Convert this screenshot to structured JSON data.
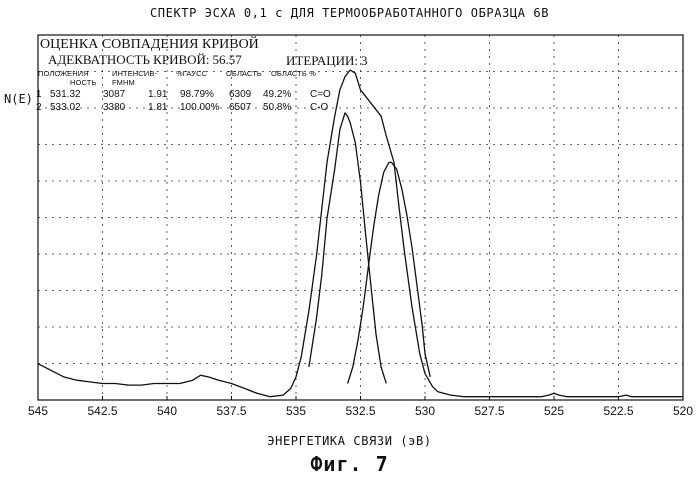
{
  "figure": {
    "title": "СПЕКТР ЭСХА 0,1 с ДЛЯ ТЕРМООБРАБОТАННОГО ОБРАЗЦА 6В",
    "caption": "Фиг. 7"
  },
  "fit": {
    "title": "ОЦЕНКА СОВПАДЕНИЯ КРИВОЙ",
    "adequacy_label": "АДЕКВАТНОСТЬ КРИВОЙ:",
    "adequacy_value": "56.57",
    "iterations_label": "ИТЕРАЦИИ:",
    "iterations_value": "3",
    "columns": [
      "ПОЛОЖЕНИЯ",
      "ИНТЕНСИВ-",
      "%ГАУСС",
      "ОБЛАСТЬ",
      "ОБЛАСТЬ %",
      "НОСТЬ",
      "FMHM"
    ],
    "rows": [
      {
        "n": "1",
        "position": "531.32",
        "intensity": "3087",
        "fwhm": "1.91",
        "gauss": "98.79%",
        "area": "6309",
        "area_pct": "49.2%",
        "label": "C=O"
      },
      {
        "n": "2",
        "position": "533.02",
        "intensity": "3380",
        "fwhm": "1.81",
        "gauss": "100.00%",
        "area": "6507",
        "area_pct": "50.8%",
        "label": "C-O"
      }
    ]
  },
  "chart_data": {
    "type": "line",
    "title": "СПЕКТР ЭСХА 0,1 с ДЛЯ ТЕРМООБРАБОТАННОГО ОБРАЗЦА 6В",
    "xlabel": "ЭНЕРГЕТИКА СВЯЗИ (эВ)",
    "ylabel": "N(E)",
    "xlim": [
      545,
      520
    ],
    "ylim": [
      0,
      100
    ],
    "x_ticks": [
      "545",
      "542.5",
      "540",
      "537.5",
      "535",
      "532.5",
      "530",
      "527.5",
      "525",
      "522.5",
      "520"
    ],
    "grid": true,
    "series": [
      {
        "x": [
          545,
          544.5,
          544,
          543.5,
          543,
          542.5,
          542,
          541.5,
          541,
          540.5,
          540,
          539.5,
          539,
          538.7,
          538.4,
          538,
          537.5,
          537,
          536.5,
          536,
          535.5,
          535.2,
          535,
          534.8,
          534.5,
          534.2,
          534,
          533.8,
          533.5,
          533.3,
          533.1,
          532.9,
          532.7,
          532.5,
          532.2,
          532,
          531.7,
          531.5,
          531.2,
          531,
          530.8,
          530.5,
          530.2,
          530,
          529.7,
          529.5,
          529,
          528.5,
          528,
          527.5,
          527,
          526.5,
          526,
          525.5,
          525.2,
          525,
          524.8,
          524.5,
          524,
          523.5,
          523,
          522.5,
          522.2,
          522,
          521.8,
          521.5,
          521,
          520.5,
          520
        ],
        "y": [
          11,
          9,
          7,
          6,
          5.5,
          5,
          5,
          4.5,
          4.5,
          5,
          5,
          5,
          6,
          7.5,
          7,
          6,
          5,
          3.5,
          2,
          1,
          1.5,
          3.5,
          7,
          13,
          27,
          44,
          58,
          72,
          86,
          94,
          98,
          100,
          99,
          94,
          91,
          89,
          86,
          80,
          72,
          58,
          45,
          28,
          14,
          8,
          4,
          2.5,
          1.5,
          1,
          1,
          1,
          1,
          1,
          1,
          1,
          1.5,
          2,
          1.5,
          1,
          1,
          1,
          1,
          1,
          1.5,
          1,
          1,
          1,
          1,
          1,
          1
        ]
      },
      {
        "x": [
          534.5,
          534.2,
          534,
          533.8,
          533.5,
          533.3,
          533.1,
          533,
          532.9,
          532.7,
          532.5,
          532.3,
          532.1,
          531.9,
          531.7,
          531.5
        ],
        "y": [
          10,
          25,
          38,
          55,
          70,
          82,
          87,
          86,
          84,
          78,
          66,
          50,
          35,
          20,
          10,
          5
        ]
      },
      {
        "x": [
          533,
          532.8,
          532.6,
          532.4,
          532.2,
          532,
          531.8,
          531.6,
          531.4,
          531.3,
          531.1,
          530.9,
          530.7,
          530.5,
          530.3,
          530.1,
          530,
          529.8
        ],
        "y": [
          5,
          10,
          18,
          28,
          40,
          52,
          62,
          69,
          72,
          72,
          70,
          64,
          56,
          46,
          34,
          22,
          14,
          7
        ]
      }
    ]
  }
}
